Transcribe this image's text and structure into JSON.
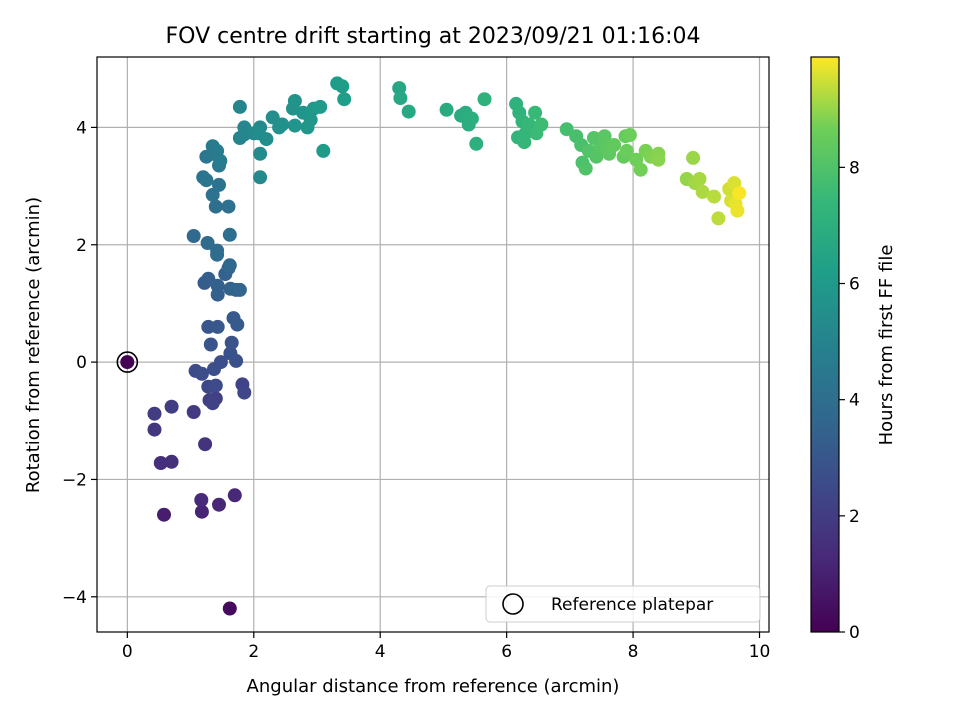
{
  "chart_data": {
    "type": "scatter",
    "title": "FOV centre drift starting at 2023/09/21 01:16:04",
    "xlabel": "Angular distance from reference (arcmin)",
    "ylabel": "Rotation from reference (arcmin)",
    "xlim": [
      -0.48,
      10.15
    ],
    "ylim": [
      -4.6,
      5.2
    ],
    "xticks": [
      0,
      2,
      4,
      6,
      8,
      10
    ],
    "yticks": [
      -4,
      -2,
      0,
      2,
      4
    ],
    "xtick_labels": [
      "0",
      "2",
      "4",
      "6",
      "8",
      "10"
    ],
    "ytick_labels": [
      "−4",
      "−2",
      "0",
      "2",
      "4"
    ],
    "grid": true,
    "legend": {
      "placement": "lower-right",
      "entries": [
        "Reference platepar"
      ]
    },
    "colorbar": {
      "label": "Hours from first FF file",
      "colormap": "viridis",
      "range": [
        0,
        9.9
      ],
      "ticks": [
        0,
        2,
        4,
        6,
        8
      ],
      "tick_labels": [
        "0",
        "2",
        "4",
        "6",
        "8"
      ]
    },
    "reference_point": {
      "x": 0,
      "y": 0,
      "c": 0
    },
    "points": [
      {
        "x": 0,
        "y": 0,
        "c": 0.05
      },
      {
        "x": 1.62,
        "y": -4.2,
        "c": 0.3
      },
      {
        "x": 0.58,
        "y": -2.6,
        "c": 0.9
      },
      {
        "x": 1.18,
        "y": -2.55,
        "c": 1.1
      },
      {
        "x": 1.45,
        "y": -2.43,
        "c": 1.2
      },
      {
        "x": 1.7,
        "y": -2.27,
        "c": 1.25
      },
      {
        "x": 1.17,
        "y": -2.35,
        "c": 1.3
      },
      {
        "x": 0.53,
        "y": -1.72,
        "c": 1.5
      },
      {
        "x": 0.7,
        "y": -1.7,
        "c": 1.55
      },
      {
        "x": 1.23,
        "y": -1.4,
        "c": 1.7
      },
      {
        "x": 0.43,
        "y": -1.15,
        "c": 1.8
      },
      {
        "x": 1.05,
        "y": -0.85,
        "c": 1.9
      },
      {
        "x": 0.43,
        "y": -0.88,
        "c": 2.0
      },
      {
        "x": 0.7,
        "y": -0.76,
        "c": 2.05
      },
      {
        "x": 1.3,
        "y": -0.65,
        "c": 2.1
      },
      {
        "x": 1.4,
        "y": -0.62,
        "c": 2.15
      },
      {
        "x": 1.35,
        "y": -0.7,
        "c": 2.2
      },
      {
        "x": 1.82,
        "y": -0.38,
        "c": 2.3
      },
      {
        "x": 1.85,
        "y": -0.52,
        "c": 2.4
      },
      {
        "x": 1.28,
        "y": -0.42,
        "c": 2.45
      },
      {
        "x": 1.4,
        "y": -0.4,
        "c": 2.5
      },
      {
        "x": 1.08,
        "y": -0.15,
        "c": 2.55
      },
      {
        "x": 1.18,
        "y": -0.2,
        "c": 2.6
      },
      {
        "x": 1.37,
        "y": -0.12,
        "c": 2.7
      },
      {
        "x": 1.48,
        "y": 0.0,
        "c": 2.75
      },
      {
        "x": 1.72,
        "y": 0.02,
        "c": 2.8
      },
      {
        "x": 1.63,
        "y": 0.15,
        "c": 2.85
      },
      {
        "x": 1.65,
        "y": 0.33,
        "c": 2.9
      },
      {
        "x": 1.32,
        "y": 0.3,
        "c": 2.95
      },
      {
        "x": 1.28,
        "y": 0.6,
        "c": 3.0
      },
      {
        "x": 1.43,
        "y": 0.6,
        "c": 3.05
      },
      {
        "x": 1.68,
        "y": 0.75,
        "c": 3.1
      },
      {
        "x": 1.74,
        "y": 0.64,
        "c": 3.15
      },
      {
        "x": 1.22,
        "y": 1.35,
        "c": 3.25
      },
      {
        "x": 1.28,
        "y": 1.42,
        "c": 3.3
      },
      {
        "x": 1.43,
        "y": 1.15,
        "c": 3.35
      },
      {
        "x": 1.43,
        "y": 1.3,
        "c": 3.4
      },
      {
        "x": 1.55,
        "y": 1.5,
        "c": 3.45
      },
      {
        "x": 1.63,
        "y": 1.25,
        "c": 3.5
      },
      {
        "x": 1.6,
        "y": 1.6,
        "c": 3.55
      },
      {
        "x": 1.72,
        "y": 1.23,
        "c": 3.6
      },
      {
        "x": 1.78,
        "y": 1.23,
        "c": 3.65
      },
      {
        "x": 1.62,
        "y": 1.65,
        "c": 3.7
      },
      {
        "x": 1.05,
        "y": 2.15,
        "c": 3.8
      },
      {
        "x": 1.27,
        "y": 2.03,
        "c": 3.85
      },
      {
        "x": 1.42,
        "y": 1.9,
        "c": 3.9
      },
      {
        "x": 1.42,
        "y": 1.83,
        "c": 3.95
      },
      {
        "x": 1.62,
        "y": 2.17,
        "c": 4.0
      },
      {
        "x": 1.4,
        "y": 2.65,
        "c": 4.05
      },
      {
        "x": 1.6,
        "y": 2.65,
        "c": 4.1
      },
      {
        "x": 1.35,
        "y": 2.85,
        "c": 4.2
      },
      {
        "x": 1.45,
        "y": 3.02,
        "c": 4.25
      },
      {
        "x": 1.2,
        "y": 3.15,
        "c": 4.3
      },
      {
        "x": 1.25,
        "y": 3.1,
        "c": 4.35
      },
      {
        "x": 1.25,
        "y": 3.5,
        "c": 4.4
      },
      {
        "x": 1.35,
        "y": 3.55,
        "c": 4.45
      },
      {
        "x": 1.45,
        "y": 3.35,
        "c": 4.5
      },
      {
        "x": 1.35,
        "y": 3.68,
        "c": 4.55
      },
      {
        "x": 1.42,
        "y": 3.6,
        "c": 4.6
      },
      {
        "x": 1.47,
        "y": 3.43,
        "c": 4.65
      },
      {
        "x": 1.78,
        "y": 3.82,
        "c": 5.0
      },
      {
        "x": 1.85,
        "y": 3.88,
        "c": 5.05
      },
      {
        "x": 1.78,
        "y": 4.35,
        "c": 5.1
      },
      {
        "x": 1.85,
        "y": 4.0,
        "c": 5.15
      },
      {
        "x": 2.0,
        "y": 3.9,
        "c": 5.2
      },
      {
        "x": 2.1,
        "y": 4.0,
        "c": 5.25
      },
      {
        "x": 2.1,
        "y": 3.15,
        "c": 5.3
      },
      {
        "x": 2.1,
        "y": 3.55,
        "c": 5.35
      },
      {
        "x": 2.08,
        "y": 3.9,
        "c": 5.4
      },
      {
        "x": 2.2,
        "y": 3.8,
        "c": 5.45
      },
      {
        "x": 2.3,
        "y": 4.17,
        "c": 5.5
      },
      {
        "x": 2.4,
        "y": 4.0,
        "c": 5.55
      },
      {
        "x": 2.45,
        "y": 4.05,
        "c": 5.6
      },
      {
        "x": 2.62,
        "y": 4.32,
        "c": 5.65
      },
      {
        "x": 2.65,
        "y": 4.45,
        "c": 5.7
      },
      {
        "x": 2.65,
        "y": 4.03,
        "c": 5.75
      },
      {
        "x": 2.78,
        "y": 4.25,
        "c": 5.8
      },
      {
        "x": 2.85,
        "y": 4.0,
        "c": 5.85
      },
      {
        "x": 2.9,
        "y": 4.13,
        "c": 5.9
      },
      {
        "x": 2.95,
        "y": 4.32,
        "c": 5.95
      },
      {
        "x": 3.05,
        "y": 4.35,
        "c": 6.0
      },
      {
        "x": 3.1,
        "y": 3.6,
        "c": 6.05
      },
      {
        "x": 3.32,
        "y": 4.75,
        "c": 6.1
      },
      {
        "x": 3.4,
        "y": 4.7,
        "c": 6.15
      },
      {
        "x": 3.43,
        "y": 4.48,
        "c": 6.2
      },
      {
        "x": 4.3,
        "y": 4.67,
        "c": 6.6
      },
      {
        "x": 4.32,
        "y": 4.5,
        "c": 6.65
      },
      {
        "x": 4.45,
        "y": 4.27,
        "c": 6.7
      },
      {
        "x": 5.05,
        "y": 4.3,
        "c": 6.8
      },
      {
        "x": 5.28,
        "y": 4.2,
        "c": 6.85
      },
      {
        "x": 5.35,
        "y": 4.25,
        "c": 6.9
      },
      {
        "x": 5.4,
        "y": 4.05,
        "c": 6.95
      },
      {
        "x": 5.45,
        "y": 4.15,
        "c": 7.0
      },
      {
        "x": 5.52,
        "y": 3.72,
        "c": 7.05
      },
      {
        "x": 5.65,
        "y": 4.48,
        "c": 7.1
      },
      {
        "x": 6.15,
        "y": 4.4,
        "c": 7.15
      },
      {
        "x": 6.2,
        "y": 4.25,
        "c": 7.2
      },
      {
        "x": 6.18,
        "y": 3.83,
        "c": 7.25
      },
      {
        "x": 6.25,
        "y": 4.1,
        "c": 7.3
      },
      {
        "x": 6.28,
        "y": 3.75,
        "c": 7.35
      },
      {
        "x": 6.3,
        "y": 3.9,
        "c": 7.4
      },
      {
        "x": 6.35,
        "y": 4.05,
        "c": 7.45
      },
      {
        "x": 6.45,
        "y": 4.25,
        "c": 7.5
      },
      {
        "x": 6.47,
        "y": 3.9,
        "c": 7.55
      },
      {
        "x": 6.55,
        "y": 4.05,
        "c": 7.6
      },
      {
        "x": 6.95,
        "y": 3.97,
        "c": 7.8
      },
      {
        "x": 7.1,
        "y": 3.85,
        "c": 7.85
      },
      {
        "x": 7.18,
        "y": 3.7,
        "c": 7.9
      },
      {
        "x": 7.2,
        "y": 3.4,
        "c": 7.95
      },
      {
        "x": 7.25,
        "y": 3.3,
        "c": 8.0
      },
      {
        "x": 7.3,
        "y": 3.6,
        "c": 8.05
      },
      {
        "x": 7.38,
        "y": 3.82,
        "c": 8.1
      },
      {
        "x": 7.42,
        "y": 3.5,
        "c": 8.15
      },
      {
        "x": 7.48,
        "y": 3.65,
        "c": 8.2
      },
      {
        "x": 7.55,
        "y": 3.85,
        "c": 8.25
      },
      {
        "x": 7.6,
        "y": 3.7,
        "c": 8.3
      },
      {
        "x": 7.62,
        "y": 3.55,
        "c": 8.35
      },
      {
        "x": 7.7,
        "y": 3.7,
        "c": 8.4
      },
      {
        "x": 7.85,
        "y": 3.5,
        "c": 8.45
      },
      {
        "x": 7.88,
        "y": 3.85,
        "c": 8.5
      },
      {
        "x": 7.9,
        "y": 3.6,
        "c": 8.55
      },
      {
        "x": 7.95,
        "y": 3.87,
        "c": 8.6
      },
      {
        "x": 8.05,
        "y": 3.45,
        "c": 8.65
      },
      {
        "x": 8.12,
        "y": 3.28,
        "c": 8.7
      },
      {
        "x": 8.2,
        "y": 3.6,
        "c": 8.75
      },
      {
        "x": 8.28,
        "y": 3.5,
        "c": 8.8
      },
      {
        "x": 8.4,
        "y": 3.55,
        "c": 8.85
      },
      {
        "x": 8.4,
        "y": 3.45,
        "c": 8.9
      },
      {
        "x": 8.85,
        "y": 3.12,
        "c": 9.0
      },
      {
        "x": 8.95,
        "y": 3.48,
        "c": 9.05
      },
      {
        "x": 8.98,
        "y": 3.05,
        "c": 9.1
      },
      {
        "x": 9.05,
        "y": 3.12,
        "c": 9.15
      },
      {
        "x": 9.1,
        "y": 2.9,
        "c": 9.2
      },
      {
        "x": 9.28,
        "y": 2.82,
        "c": 9.3
      },
      {
        "x": 9.35,
        "y": 2.45,
        "c": 9.35
      },
      {
        "x": 9.52,
        "y": 2.95,
        "c": 9.5
      },
      {
        "x": 9.55,
        "y": 2.75,
        "c": 9.55
      },
      {
        "x": 9.6,
        "y": 3.05,
        "c": 9.6
      },
      {
        "x": 9.62,
        "y": 2.7,
        "c": 9.7
      },
      {
        "x": 9.65,
        "y": 2.58,
        "c": 9.75
      },
      {
        "x": 9.68,
        "y": 2.88,
        "c": 9.85
      }
    ]
  }
}
